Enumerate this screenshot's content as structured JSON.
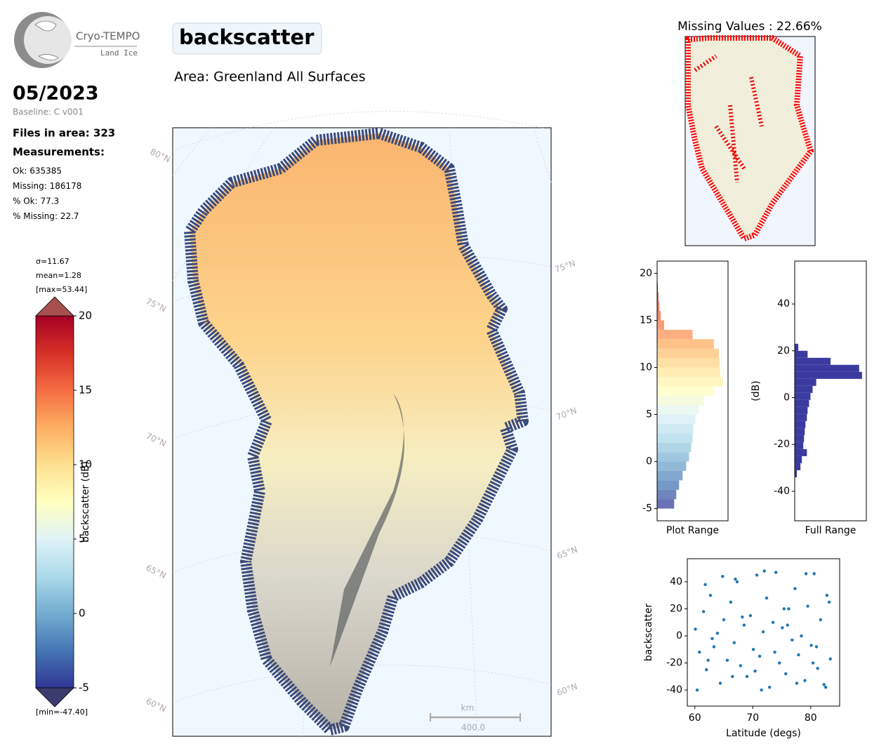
{
  "header": {
    "logo_name": "Cryo-TEMPO",
    "logo_sub": "Land Ice",
    "title": "backscatter",
    "area": "Area: Greenland All Surfaces",
    "date": "05/2023",
    "baseline": "Baseline: C v001",
    "files": "Files in area: 323",
    "measurements": "Measurements:",
    "stats": [
      "Ok: 635385",
      "Missing: 186178",
      "% Ok: 77.3",
      "% Missing: 22.7"
    ]
  },
  "colorbar": {
    "stats": [
      "σ=11.67",
      "mean=1.28",
      "[max=53.44]"
    ],
    "min_label": "[min=-47.40]",
    "label": "backscatter (dB)",
    "lim": [
      -5,
      20
    ],
    "ticks": [
      -5,
      0,
      5,
      10,
      15,
      20
    ],
    "colors": [
      "#313695",
      "#4575b4",
      "#74add1",
      "#abd9e9",
      "#e0f3f8",
      "#ffffbf",
      "#fee090",
      "#fdae61",
      "#f46d43",
      "#d73027",
      "#a50026"
    ]
  },
  "map": {
    "lat_labels_left": [
      "80°N",
      "75°N",
      "70°N",
      "65°N",
      "60°N"
    ],
    "lat_labels_right": [
      "75°N",
      "70°N",
      "65°N",
      "60°N"
    ],
    "scale_unit": "km",
    "scale_value": "400.0"
  },
  "missing": {
    "title": "Missing Values : 22.66%"
  },
  "chart_data": [
    {
      "type": "histogram",
      "orientation": "horizontal",
      "xlabel": "Plot Range",
      "ylim": [
        -6.3,
        21.3
      ],
      "yticks": [
        -5,
        0,
        5,
        10,
        15,
        20
      ],
      "xlim": [
        0,
        1
      ],
      "bins": [
        -5,
        -4,
        -3,
        -2,
        -1,
        0,
        1,
        2,
        3,
        4,
        5,
        6,
        7,
        8,
        9,
        10,
        11,
        12,
        13,
        14,
        15,
        16,
        17,
        18,
        19,
        20
      ],
      "values": [
        0.24,
        0.27,
        0.31,
        0.36,
        0.41,
        0.45,
        0.48,
        0.5,
        0.51,
        0.54,
        0.58,
        0.66,
        0.8,
        0.93,
        0.89,
        0.88,
        0.87,
        0.8,
        0.5,
        0.1,
        0.05,
        0.03,
        0.02,
        0.01,
        0.005
      ]
    },
    {
      "type": "histogram",
      "orientation": "horizontal",
      "xlabel": "Full Range",
      "ylabel": "(dB)",
      "ylim": [
        -52.6,
        58.3
      ],
      "yticks": [
        -40,
        -20,
        0,
        20,
        40
      ],
      "xlim": [
        0,
        1
      ],
      "color": "#3a3aa0",
      "bins": [
        -34,
        -31,
        -28,
        -25,
        -22,
        -19,
        -16,
        -13,
        -10,
        -7,
        -4,
        -1,
        2,
        5,
        8,
        11,
        14,
        17,
        20,
        23
      ],
      "values": [
        0.03,
        0.08,
        0.1,
        0.17,
        0.12,
        0.13,
        0.14,
        0.15,
        0.17,
        0.18,
        0.2,
        0.22,
        0.25,
        0.3,
        0.94,
        0.9,
        0.5,
        0.18,
        0.05
      ]
    },
    {
      "type": "scatter",
      "xlabel": "Latitude (degs)",
      "ylabel": "backscatter",
      "xlim": [
        58.7,
        85
      ],
      "xticks": [
        60,
        70,
        80
      ],
      "ylim": [
        -51.9,
        57.1
      ],
      "yticks": [
        -40,
        -20,
        0,
        20,
        40
      ],
      "color": "#1f77b4",
      "x": [
        60.1,
        60.8,
        61.5,
        62.0,
        62.7,
        63.3,
        63.9,
        64.4,
        65.0,
        65.6,
        66.2,
        66.8,
        67.3,
        67.9,
        68.5,
        69.0,
        69.6,
        70.1,
        70.7,
        71.2,
        71.8,
        72.4,
        72.9,
        73.5,
        74.0,
        74.6,
        75.1,
        75.7,
        76.2,
        76.8,
        77.3,
        77.9,
        78.4,
        79.0,
        79.5,
        80.1,
        80.6,
        81.2,
        81.7,
        82.3,
        82.8,
        83.4,
        60.4,
        61.8,
        63.0,
        64.8,
        66.5,
        68.2,
        70.4,
        72.0,
        73.8,
        75.4,
        77.6,
        79.2,
        81.0,
        82.6,
        83.2,
        62.3,
        67.0,
        71.5,
        76.0,
        80.4
      ],
      "values": [
        5,
        -12,
        18,
        -25,
        30,
        -8,
        2,
        -35,
        12,
        -18,
        25,
        -5,
        40,
        -22,
        8,
        -30,
        15,
        -10,
        45,
        -15,
        3,
        28,
        -38,
        10,
        47,
        -20,
        6,
        -28,
        20,
        -3,
        35,
        -14,
        0,
        -33,
        22,
        -7,
        46,
        -24,
        12,
        -36,
        30,
        -17,
        -40,
        38,
        -2,
        44,
        -30,
        14,
        -26,
        48,
        -12,
        20,
        -35,
        46,
        -8,
        -38,
        25,
        -18,
        42,
        -40,
        8,
        -20
      ]
    }
  ]
}
